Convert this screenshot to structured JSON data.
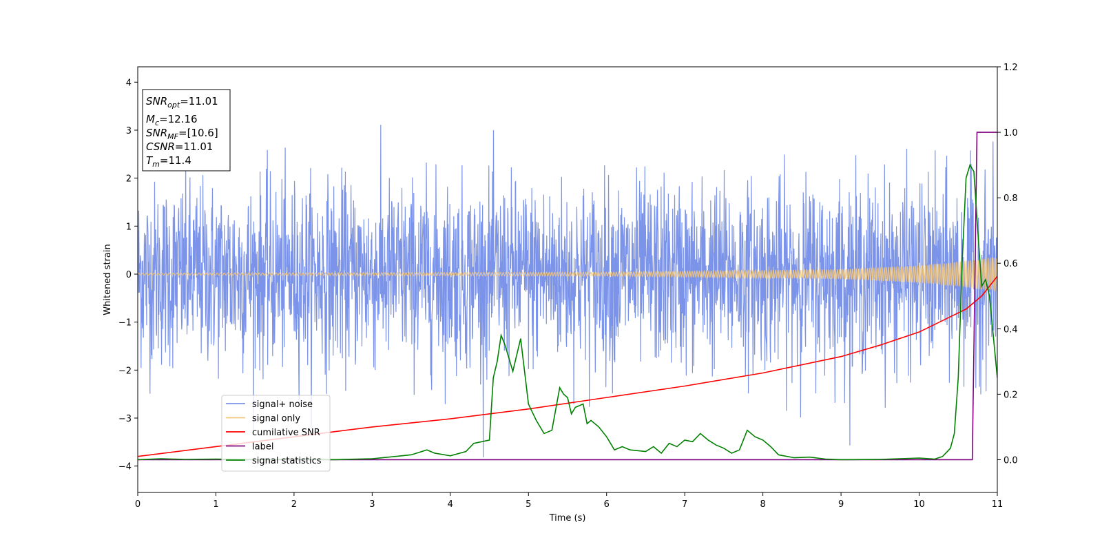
{
  "chart_data": {
    "type": "line",
    "xlabel": "Time (s)",
    "ylabel": "Whitened strain",
    "xlim": [
      0,
      11
    ],
    "ylim_left": [
      -4.55,
      4.32
    ],
    "ylim_right": [
      -0.1,
      1.2
    ],
    "xticks": [
      "0",
      "1",
      "2",
      "3",
      "4",
      "5",
      "6",
      "7",
      "8",
      "9",
      "10",
      "11"
    ],
    "yticks_left": [
      "−4",
      "−3",
      "−2",
      "−1",
      "0",
      "1",
      "2",
      "3",
      "4"
    ],
    "yticks_right": [
      "0.0",
      "0.2",
      "0.4",
      "0.6",
      "0.8",
      "1.0",
      "1.2"
    ],
    "grid": false,
    "legend_position": "lower-left",
    "info_box": {
      "lines": [
        {
          "base": "SNR",
          "sub": "opt",
          "value": "=11.01"
        },
        {
          "base": "M",
          "sub": "c",
          "value": "=12.16"
        },
        {
          "base": "SNR",
          "sub": "MF",
          "value": "=[10.6]"
        },
        {
          "base": "CSNR",
          "sub": "",
          "value": "=11.01"
        },
        {
          "base": "T",
          "sub": "m",
          "value": "=11.4"
        }
      ]
    },
    "series": [
      {
        "name": "signal+ noise",
        "color": "#7b93e8",
        "axis": "left",
        "description": "noise",
        "noise_std": 0.95
      },
      {
        "name": "signal only",
        "color": "#f4c77a",
        "axis": "left",
        "envelope": [
          [
            0,
            0.02
          ],
          [
            6,
            0.04
          ],
          [
            9,
            0.1
          ],
          [
            10,
            0.18
          ],
          [
            10.5,
            0.26
          ],
          [
            11,
            0.36
          ]
        ]
      },
      {
        "name": "cumilative SNR",
        "color": "#ff0000",
        "axis": "right",
        "x": [
          0,
          1,
          2,
          3,
          4,
          5,
          6,
          7,
          8,
          9,
          9.5,
          10,
          10.3,
          10.6,
          10.8,
          11
        ],
        "y": [
          0.01,
          0.04,
          0.07,
          0.1,
          0.125,
          0.155,
          0.19,
          0.225,
          0.265,
          0.315,
          0.35,
          0.39,
          0.425,
          0.46,
          0.5,
          0.56
        ]
      },
      {
        "name": "label",
        "color": "#800080",
        "axis": "right",
        "x": [
          0,
          10.68,
          10.74,
          11
        ],
        "y": [
          0,
          0,
          1,
          1
        ]
      },
      {
        "name": "signal statistics",
        "color": "#008000",
        "axis": "right",
        "x": [
          0,
          0.3,
          0.6,
          1.0,
          1.5,
          2.0,
          2.5,
          3.0,
          3.3,
          3.5,
          3.7,
          3.8,
          4.0,
          4.2,
          4.3,
          4.5,
          4.55,
          4.6,
          4.65,
          4.7,
          4.8,
          4.9,
          5.0,
          5.1,
          5.2,
          5.3,
          5.4,
          5.45,
          5.5,
          5.55,
          5.6,
          5.7,
          5.75,
          5.8,
          5.9,
          6.0,
          6.1,
          6.2,
          6.3,
          6.5,
          6.6,
          6.7,
          6.8,
          6.9,
          7.0,
          7.1,
          7.2,
          7.3,
          7.4,
          7.5,
          7.6,
          7.7,
          7.8,
          7.9,
          8.0,
          8.1,
          8.2,
          8.4,
          8.6,
          8.8,
          9.0,
          9.5,
          10.0,
          10.2,
          10.3,
          10.4,
          10.45,
          10.5,
          10.55,
          10.6,
          10.65,
          10.7,
          10.75,
          10.8,
          10.85,
          10.9,
          11.0
        ],
        "y": [
          0.0,
          0.003,
          0.001,
          0.002,
          0.0,
          0.002,
          0.0,
          0.003,
          0.01,
          0.015,
          0.03,
          0.02,
          0.012,
          0.025,
          0.05,
          0.06,
          0.25,
          0.3,
          0.38,
          0.35,
          0.27,
          0.37,
          0.17,
          0.12,
          0.08,
          0.09,
          0.22,
          0.2,
          0.19,
          0.14,
          0.16,
          0.17,
          0.11,
          0.12,
          0.1,
          0.07,
          0.03,
          0.04,
          0.03,
          0.025,
          0.04,
          0.02,
          0.05,
          0.04,
          0.06,
          0.055,
          0.08,
          0.06,
          0.045,
          0.035,
          0.02,
          0.03,
          0.09,
          0.07,
          0.06,
          0.04,
          0.015,
          0.006,
          0.008,
          0.002,
          0.0,
          0.001,
          0.005,
          0.002,
          0.01,
          0.035,
          0.08,
          0.25,
          0.6,
          0.86,
          0.9,
          0.88,
          0.7,
          0.53,
          0.55,
          0.5,
          0.25
        ]
      }
    ]
  }
}
